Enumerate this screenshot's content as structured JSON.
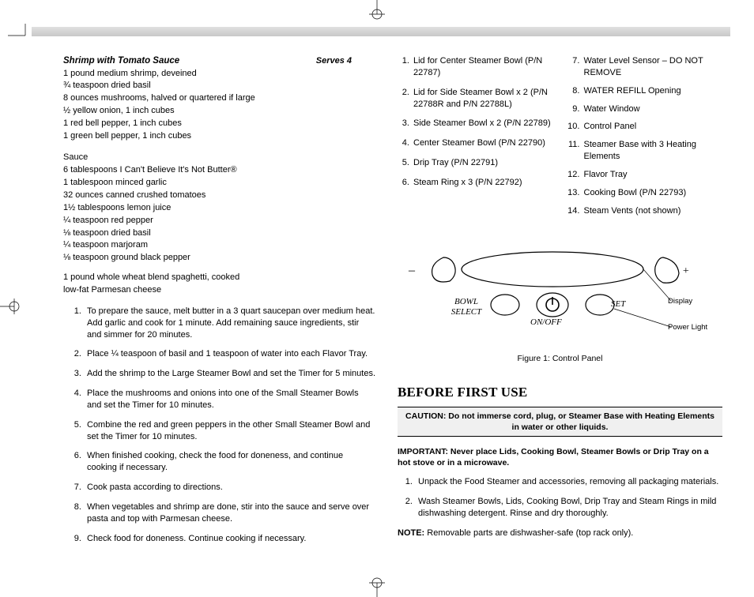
{
  "recipe": {
    "title": "Shrimp with Tomato Sauce",
    "serves": "Serves 4",
    "ingredients": [
      "1 pound medium shrimp, deveined",
      "¾ teaspoon dried basil",
      "8 ounces mushrooms, halved or quartered if large",
      "½ yellow onion, 1 inch cubes",
      "1 red bell pepper, 1 inch cubes",
      "1 green bell pepper, 1 inch cubes"
    ],
    "sauce_head": "Sauce",
    "sauce": [
      "6 tablespoons I Can't Believe It's Not Butter®",
      "1 tablespoon minced garlic",
      "32 ounces canned crushed tomatoes",
      "1½ tablespoons lemon juice",
      "¼ teaspoon red pepper",
      "⅛ teaspoon dried basil",
      "¼ teaspoon marjoram",
      "⅛ teaspoon ground black pepper"
    ],
    "extra": [
      "1 pound whole wheat blend spaghetti, cooked",
      "low-fat Parmesan cheese"
    ],
    "steps": [
      "To prepare the sauce, melt butter in a 3 quart saucepan over medium heat.  Add garlic and cook for 1 minute. Add remaining sauce ingredients, stir and simmer for 20 minutes.",
      "Place ¼ teaspoon of basil and 1 teaspoon of water into each Flavor Tray.",
      "Add the shrimp to the Large Steamer Bowl and set the Timer for 5 minutes.",
      "Place the mushrooms and onions into one of the Small Steamer Bowls and set the Timer for 10 minutes.",
      "Combine the red and green peppers in the other Small Steamer Bowl and set the Timer for 10 minutes.",
      "When finished cooking, check the food for doneness, and continue cooking if necessary.",
      "Cook pasta according to directions.",
      "When vegetables and shrimp are done, stir into the sauce and serve over pasta and top with Parmesan cheese.",
      "Check food for doneness.  Continue cooking if necessary."
    ]
  },
  "parts": {
    "col1": [
      "Lid for Center Steamer Bowl (P/N 22787)",
      "Lid for Side Steamer Bowl x 2 (P/N 22788R and P/N 22788L)",
      "Side Steamer Bowl x 2 (P/N 22789)",
      "Center Steamer Bowl (P/N 22790)",
      "Drip Tray (P/N 22791)",
      "Steam Ring x 3  (P/N 22792)"
    ],
    "col2": [
      "Water Level Sensor – DO NOT REMOVE",
      "WATER REFILL Opening",
      "Water Window",
      "Control Panel",
      "Steamer Base with 3 Heating Elements",
      "Flavor Tray",
      "Cooking Bowl  (P/N 22793)",
      "Steam Vents (not shown)"
    ]
  },
  "figure": {
    "caption": "Figure 1: Control Panel",
    "minus": "–",
    "plus": "+",
    "bowl_select": "BOWL SELECT",
    "set": "SET",
    "onoff": "ON/OFF",
    "display": "Display",
    "power_light": "Power Light"
  },
  "before": {
    "heading": "BEFORE FIRST USE",
    "caution": "CAUTION: Do not immerse cord, plug, or Steamer Base with Heating Elements in water or other liquids.",
    "important": "IMPORTANT: Never place Lids, Cooking Bowl, Steamer Bowls or Drip Tray on a hot stove or in a microwave.",
    "steps": [
      "Unpack the Food Steamer and accessories, removing all packaging materials.",
      "Wash Steamer Bowls, Lids, Cooking Bowl, Drip Tray and Steam Rings in mild dishwashing detergent. Rinse and dry thoroughly."
    ],
    "note_label": "NOTE:",
    "note": "  Removable parts are dishwasher-safe (top rack only)."
  }
}
